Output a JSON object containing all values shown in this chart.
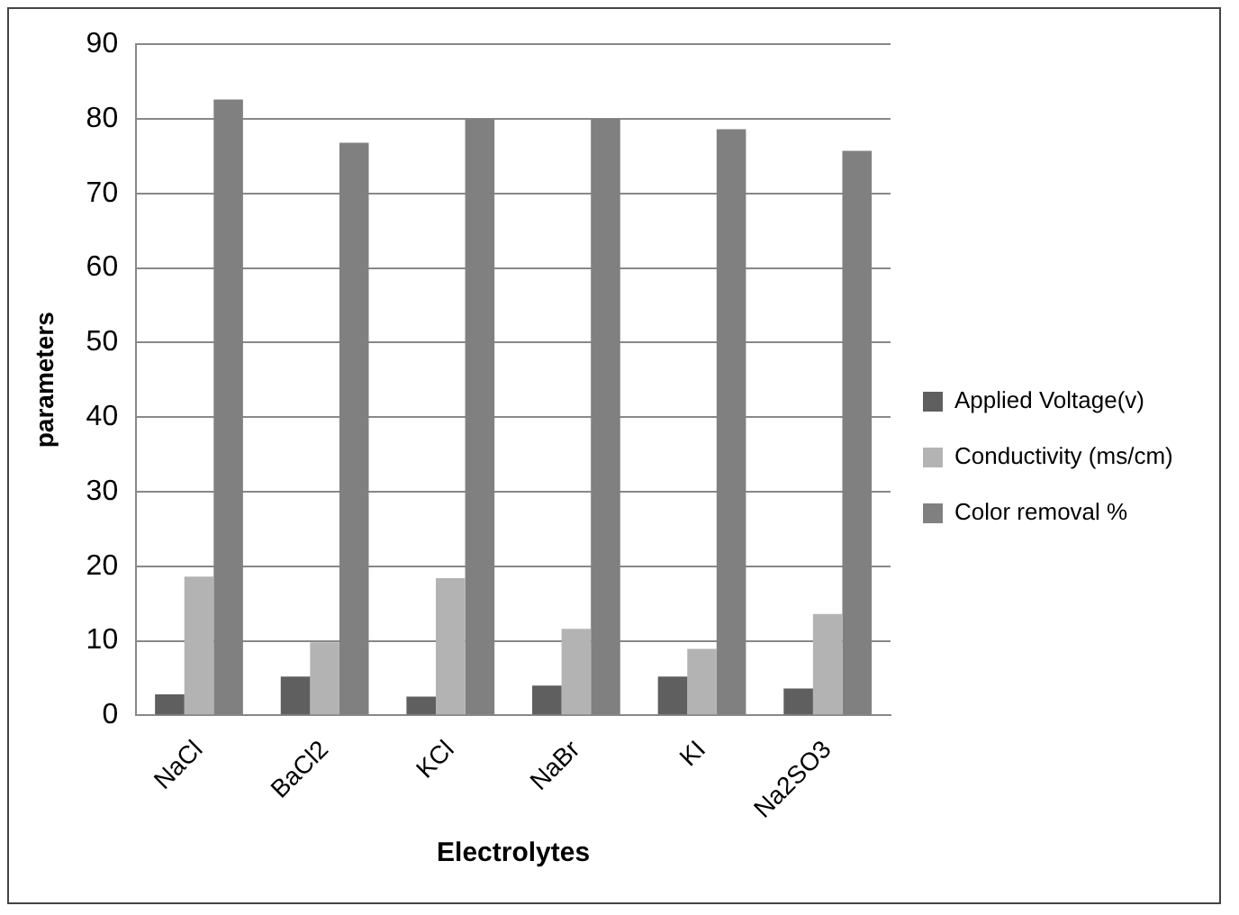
{
  "chart_data": {
    "type": "bar",
    "xlabel": "Electrolytes",
    "ylabel": "parameters",
    "categories": [
      "NaCl",
      "BaCl2",
      "KCl",
      "NaBr",
      "KI",
      "Na2SO3"
    ],
    "series": [
      {
        "name": "Applied Voltage(v)",
        "color": "#5f5f5f",
        "values": [
          2.8,
          5.2,
          2.5,
          4,
          5.2,
          3.6
        ]
      },
      {
        "name": "Conductivity (ms/cm)",
        "color": "#b3b3b3",
        "values": [
          18.6,
          9.8,
          18.4,
          11.6,
          8.9,
          13.6
        ]
      },
      {
        "name": "Color removal %",
        "color": "#808080",
        "values": [
          82.6,
          76.8,
          80,
          80,
          78.6,
          75.7
        ]
      }
    ],
    "ylim": [
      0,
      90
    ],
    "yticks": [
      0,
      10,
      20,
      30,
      40,
      50,
      60,
      70,
      80,
      90
    ],
    "grid": "y",
    "legend": "right"
  }
}
